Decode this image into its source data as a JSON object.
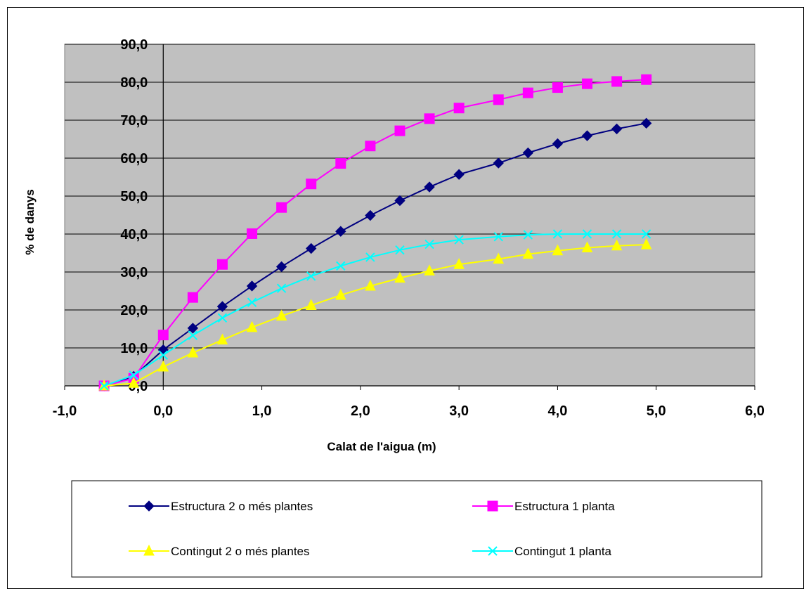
{
  "chart_data": {
    "type": "line",
    "title": "",
    "xlabel": "Calat de l'aigua (m)",
    "ylabel": "% de danys",
    "xlim": [
      -1.0,
      6.0
    ],
    "ylim": [
      0.0,
      90.0
    ],
    "x_ticks": [
      -1.0,
      0.0,
      1.0,
      2.0,
      3.0,
      4.0,
      5.0,
      6.0
    ],
    "y_ticks": [
      0.0,
      10.0,
      20.0,
      30.0,
      40.0,
      50.0,
      60.0,
      70.0,
      80.0,
      90.0
    ],
    "x_tick_labels": [
      "-1,0",
      "0,0",
      "1,0",
      "2,0",
      "3,0",
      "4,0",
      "5,0",
      "6,0"
    ],
    "y_tick_labels": [
      "0,0",
      "10,0",
      "20,0",
      "30,0",
      "40,0",
      "50,0",
      "60,0",
      "70,0",
      "80,0",
      "90,0"
    ],
    "grid": "horizontal",
    "plot_background": "#c0c0c0",
    "legend_position": "bottom",
    "x": [
      -0.6,
      -0.3,
      0.0,
      0.3,
      0.6,
      0.9,
      1.2,
      1.5,
      1.8,
      2.1,
      2.4,
      2.7,
      3.0,
      3.4,
      3.7,
      4.0,
      4.3,
      4.6,
      4.9
    ],
    "series": [
      {
        "name": "Estructura 2 o més plantes",
        "color": "#000080",
        "marker": "diamond",
        "values": [
          0.0,
          2.5,
          9.5,
          15.2,
          20.9,
          26.3,
          31.4,
          36.2,
          40.7,
          44.9,
          48.8,
          52.4,
          55.7,
          58.7,
          61.4,
          63.8,
          65.9,
          67.7,
          69.2
        ]
      },
      {
        "name": "Estructura 1 planta",
        "color": "#ff00ff",
        "marker": "square",
        "values": [
          0.0,
          2.0,
          13.4,
          23.3,
          32.0,
          40.1,
          47.0,
          53.2,
          58.6,
          63.2,
          67.2,
          70.4,
          73.2,
          75.4,
          77.2,
          78.6,
          79.6,
          80.2,
          80.7
        ]
      },
      {
        "name": "Contingut 2 o més plantes",
        "color": "#ffff00",
        "marker": "triangle",
        "values": [
          0.0,
          0.7,
          5.0,
          8.7,
          12.1,
          15.4,
          18.4,
          21.2,
          23.9,
          26.3,
          28.4,
          30.3,
          32.0,
          33.4,
          34.7,
          35.6,
          36.4,
          36.9,
          37.2
        ]
      },
      {
        "name": "Contingut 1 planta",
        "color": "#00ffff",
        "marker": "x",
        "values": [
          0.0,
          2.8,
          8.1,
          13.3,
          17.9,
          22.0,
          25.7,
          28.9,
          31.6,
          33.9,
          35.8,
          37.3,
          38.5,
          39.3,
          39.8,
          40.0,
          40.0,
          40.0,
          40.0
        ]
      }
    ]
  }
}
